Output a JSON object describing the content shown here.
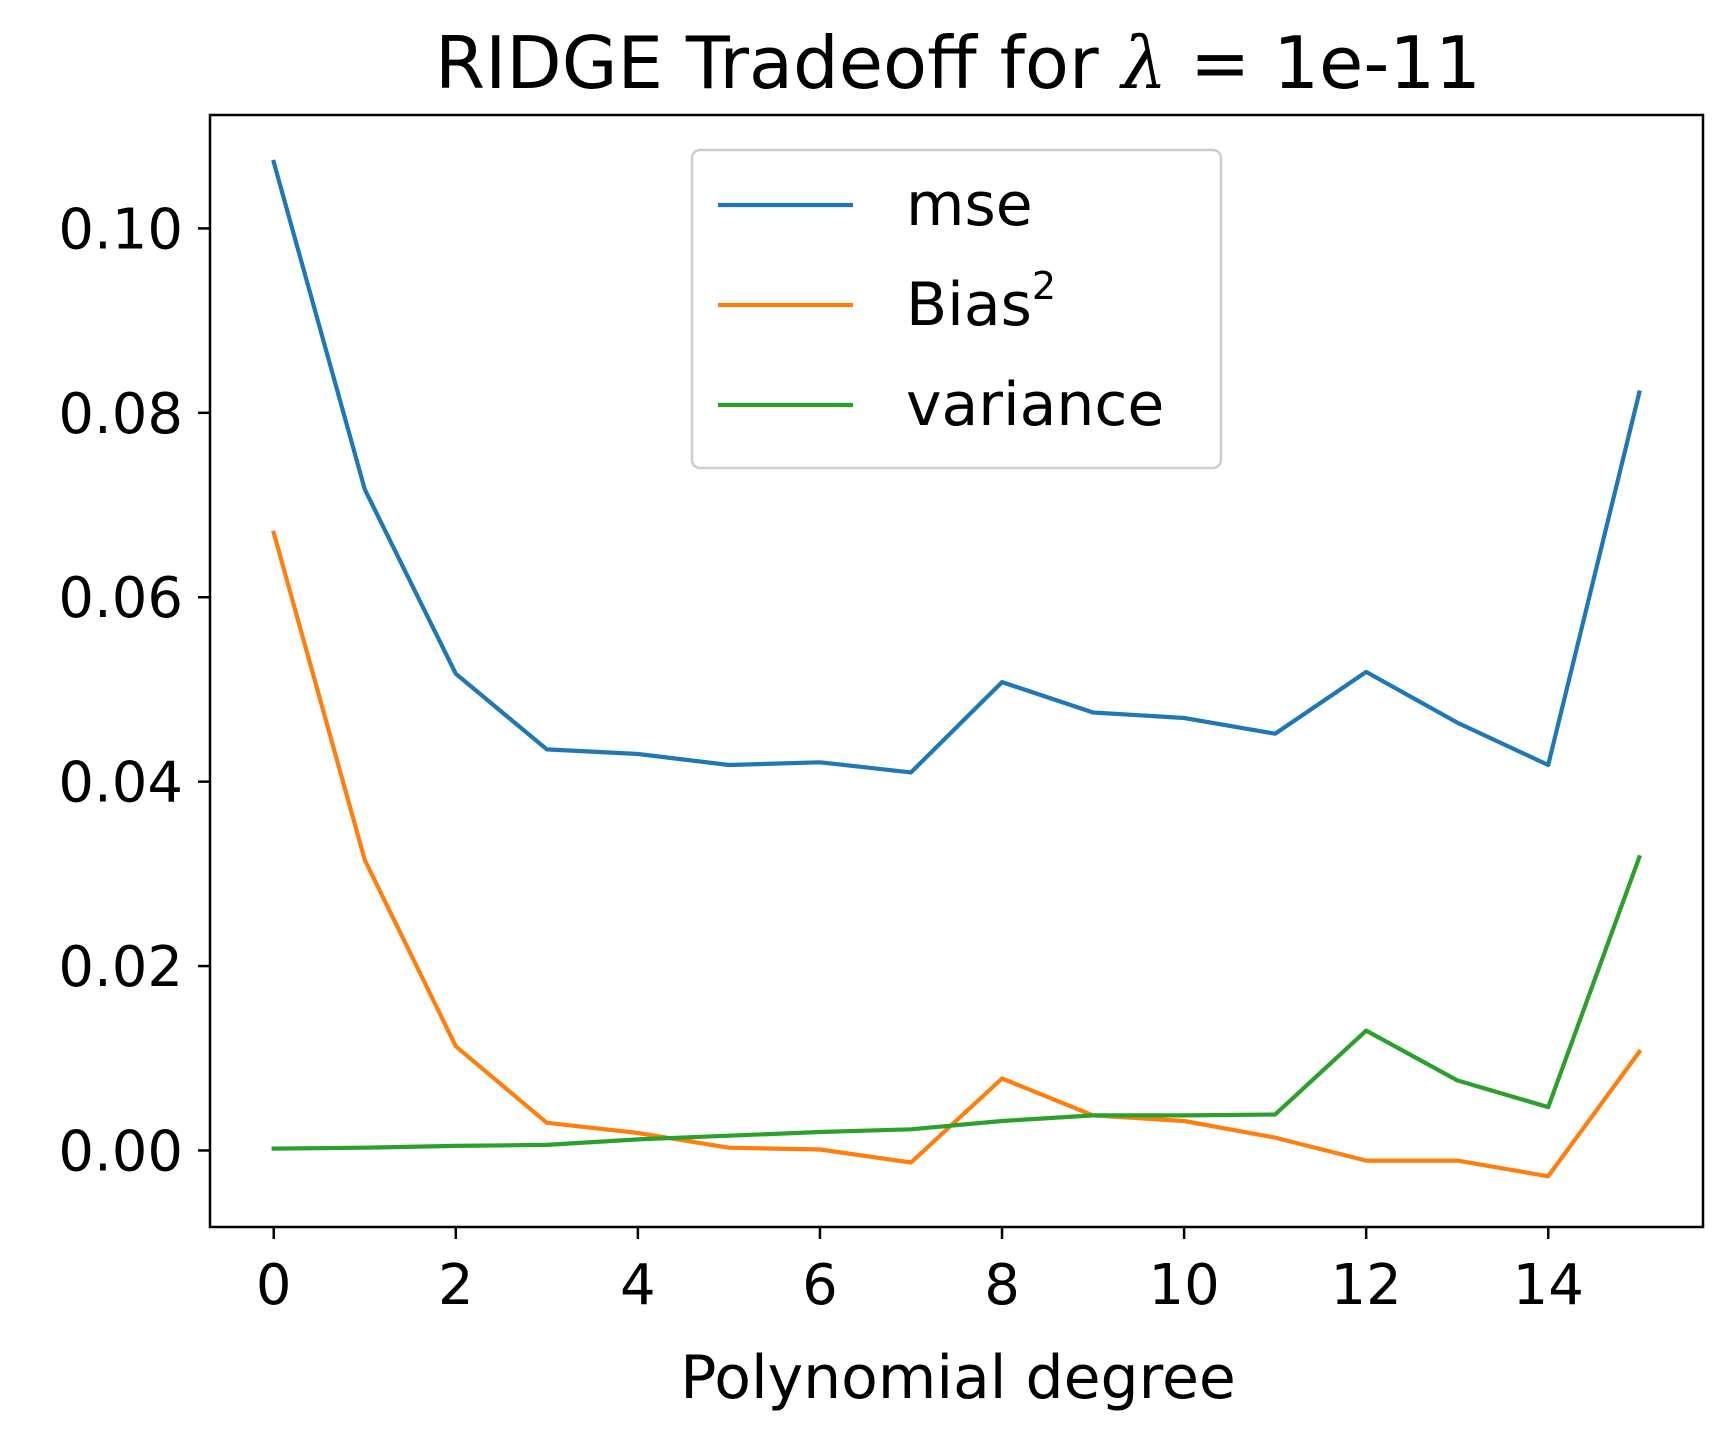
{
  "chart_data": {
    "type": "line",
    "title_prefix": "RIDGE Tradeoff for ",
    "title_symbol": "λ",
    "title_suffix": " =  1e-11",
    "xlabel": "Polynomial degree",
    "ylabel": "",
    "xlim": [
      -0.7,
      15.7
    ],
    "ylim": [
      -0.0083,
      0.1123
    ],
    "xticks": [
      0,
      2,
      4,
      6,
      8,
      10,
      12,
      14
    ],
    "xtick_labels": [
      "0",
      "2",
      "4",
      "6",
      "8",
      "10",
      "12",
      "14"
    ],
    "yticks": [
      0.0,
      0.02,
      0.04,
      0.06,
      0.08,
      0.1
    ],
    "ytick_labels": [
      "0.00",
      "0.02",
      "0.04",
      "0.06",
      "0.08",
      "0.10"
    ],
    "grid": false,
    "legend_position": "top-center",
    "x": [
      0,
      1,
      2,
      3,
      4,
      5,
      6,
      7,
      8,
      9,
      10,
      11,
      12,
      13,
      14,
      15
    ],
    "series": [
      {
        "name": "mse",
        "legend_base": "mse",
        "legend_sup": "",
        "color": "#1f77b4",
        "values": [
          0.1072,
          0.0717,
          0.0517,
          0.0435,
          0.043,
          0.0418,
          0.0421,
          0.041,
          0.0508,
          0.0475,
          0.0469,
          0.0452,
          0.0519,
          0.0464,
          0.0418,
          0.0822
        ]
      },
      {
        "name": "Bias2",
        "legend_base": "Bias",
        "legend_sup": "2",
        "color": "#ff7f0e",
        "values": [
          0.067,
          0.0315,
          0.0113,
          0.003,
          0.0019,
          0.0003,
          0.0001,
          -0.0013,
          0.0078,
          0.0038,
          0.0032,
          0.0014,
          -0.0011,
          -0.0011,
          -0.0028,
          0.0107
        ]
      },
      {
        "name": "variance",
        "legend_base": "variance",
        "legend_sup": "",
        "color": "#2ca02c",
        "values": [
          0.0002,
          0.0003,
          0.0005,
          0.0006,
          0.0012,
          0.0016,
          0.002,
          0.0023,
          0.0032,
          0.0038,
          0.0038,
          0.0039,
          0.013,
          0.0076,
          0.0047,
          0.0318
        ]
      }
    ]
  }
}
